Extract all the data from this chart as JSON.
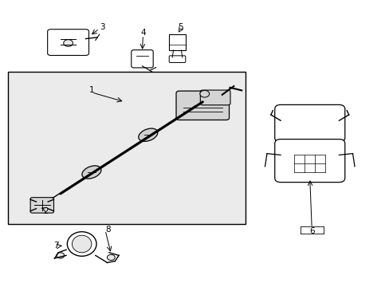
{
  "bg_color": "#ffffff",
  "box_bg": "#e8e8e8",
  "line_color": "#000000",
  "part_color": "#333333",
  "figsize": [
    4.89,
    3.6
  ],
  "dpi": 100
}
